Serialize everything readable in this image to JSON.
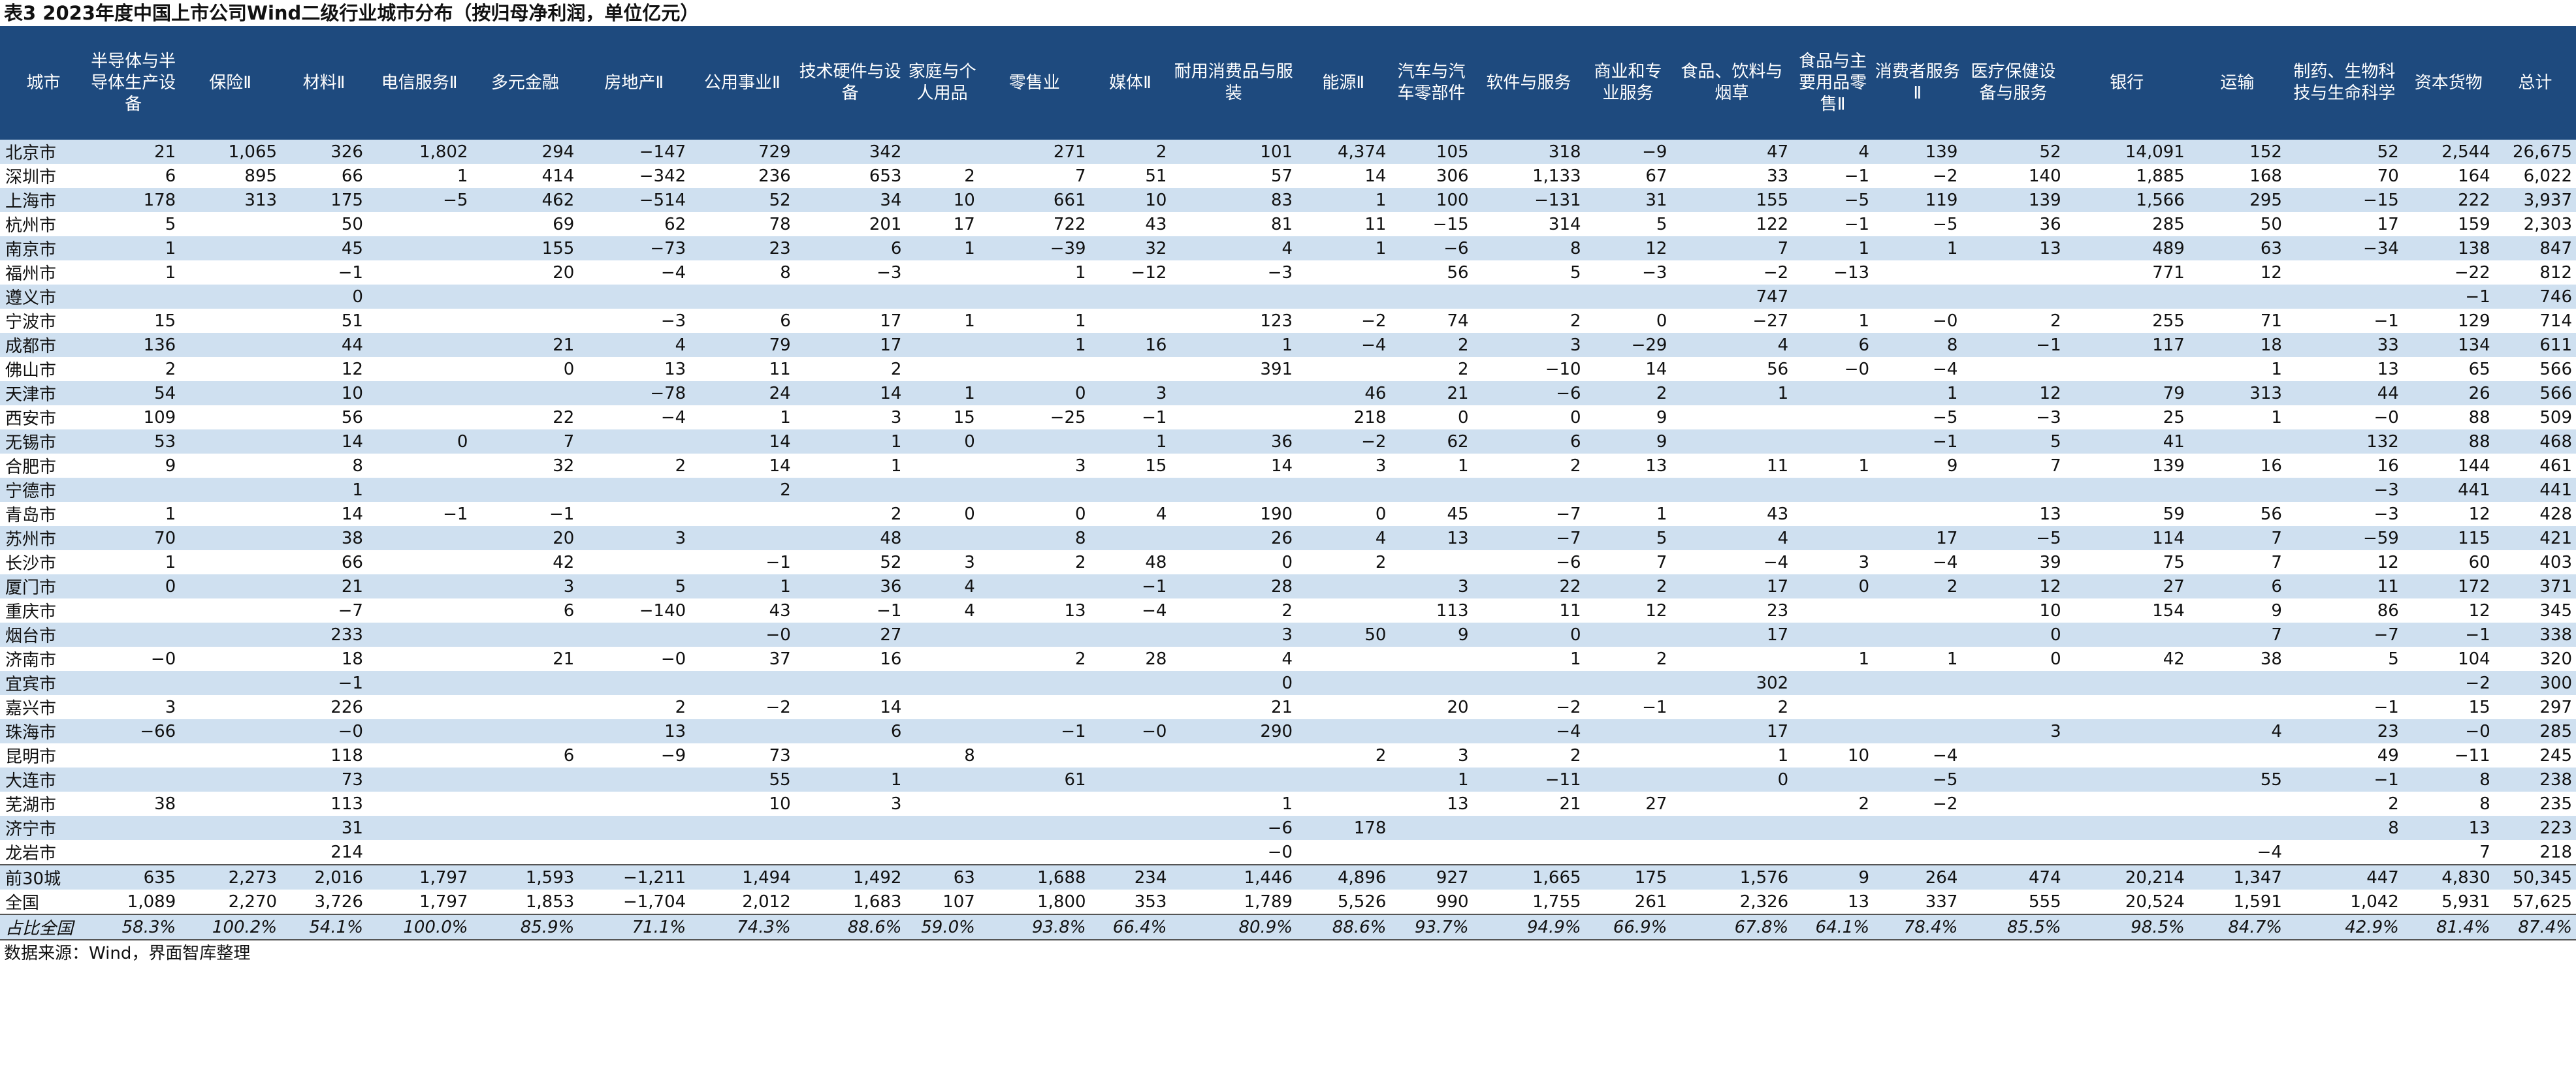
{
  "title": "表3 2023年度中国上市公司Wind二级行业城市分布（按归母净利润，单位亿元）",
  "source": "数据来源：Wind，界面智库整理",
  "columns": [
    "城市",
    "半导体与半导体生产设备",
    "保险Ⅱ",
    "材料Ⅱ",
    "电信服务Ⅱ",
    "多元金融",
    "房地产Ⅱ",
    "公用事业Ⅱ",
    "技术硬件与设备",
    "家庭与个人用品",
    "零售业",
    "媒体Ⅱ",
    "耐用消费品与服装",
    "能源Ⅱ",
    "汽车与汽车零部件",
    "软件与服务",
    "商业和专业服务",
    "食品、饮料与烟草",
    "食品与主要用品零售Ⅱ",
    "消费者服务Ⅱ",
    "医疗保健设备与服务",
    "银行",
    "运输",
    "制药、生物科技与生命科学",
    "资本货物",
    "总计"
  ],
  "rows": [
    [
      "北京市",
      "21",
      "1,065",
      "326",
      "1,802",
      "294",
      "−147",
      "729",
      "342",
      "",
      "271",
      "2",
      "101",
      "4,374",
      "105",
      "318",
      "−9",
      "47",
      "4",
      "139",
      "52",
      "14,091",
      "152",
      "52",
      "2,544",
      "26,675"
    ],
    [
      "深圳市",
      "6",
      "895",
      "66",
      "1",
      "414",
      "−342",
      "236",
      "653",
      "2",
      "7",
      "51",
      "57",
      "14",
      "306",
      "1,133",
      "67",
      "33",
      "−1",
      "−2",
      "140",
      "1,885",
      "168",
      "70",
      "164",
      "6,022"
    ],
    [
      "上海市",
      "178",
      "313",
      "175",
      "−5",
      "462",
      "−514",
      "52",
      "34",
      "10",
      "661",
      "10",
      "83",
      "1",
      "100",
      "−131",
      "31",
      "155",
      "−5",
      "119",
      "139",
      "1,566",
      "295",
      "−15",
      "222",
      "3,937"
    ],
    [
      "杭州市",
      "5",
      "",
      "50",
      "",
      "69",
      "62",
      "78",
      "201",
      "17",
      "722",
      "43",
      "81",
      "11",
      "−15",
      "314",
      "5",
      "122",
      "−1",
      "−5",
      "36",
      "285",
      "50",
      "17",
      "159",
      "2,303"
    ],
    [
      "南京市",
      "1",
      "",
      "45",
      "",
      "155",
      "−73",
      "23",
      "6",
      "1",
      "−39",
      "32",
      "4",
      "1",
      "−6",
      "8",
      "12",
      "7",
      "1",
      "1",
      "13",
      "489",
      "63",
      "−34",
      "138",
      "847"
    ],
    [
      "福州市",
      "1",
      "",
      "−1",
      "",
      "20",
      "−4",
      "8",
      "−3",
      "",
      "1",
      "−12",
      "−3",
      "",
      "56",
      "5",
      "−3",
      "−2",
      "−13",
      "",
      "",
      "771",
      "12",
      "",
      "−22",
      "812"
    ],
    [
      "遵义市",
      "",
      "",
      "0",
      "",
      "",
      "",
      "",
      "",
      "",
      "",
      "",
      "",
      "",
      "",
      "",
      "",
      "747",
      "",
      "",
      "",
      "",
      "",
      "",
      "−1",
      "746"
    ],
    [
      "宁波市",
      "15",
      "",
      "51",
      "",
      "",
      "−3",
      "6",
      "17",
      "1",
      "1",
      "",
      "123",
      "−2",
      "74",
      "2",
      "0",
      "−27",
      "1",
      "−0",
      "2",
      "255",
      "71",
      "−1",
      "129",
      "714"
    ],
    [
      "成都市",
      "136",
      "",
      "44",
      "",
      "21",
      "4",
      "79",
      "17",
      "",
      "1",
      "16",
      "1",
      "−4",
      "2",
      "3",
      "−29",
      "4",
      "6",
      "8",
      "−1",
      "117",
      "18",
      "33",
      "134",
      "611"
    ],
    [
      "佛山市",
      "2",
      "",
      "12",
      "",
      "0",
      "13",
      "11",
      "2",
      "",
      "",
      "",
      "391",
      "",
      "2",
      "−10",
      "14",
      "56",
      "−0",
      "−4",
      "",
      "",
      "1",
      "13",
      "65",
      "566"
    ],
    [
      "天津市",
      "54",
      "",
      "10",
      "",
      "",
      "−78",
      "24",
      "14",
      "1",
      "0",
      "3",
      "",
      "46",
      "21",
      "−6",
      "2",
      "1",
      "",
      "1",
      "12",
      "79",
      "313",
      "44",
      "26",
      "566"
    ],
    [
      "西安市",
      "109",
      "",
      "56",
      "",
      "22",
      "−4",
      "1",
      "3",
      "15",
      "−25",
      "−1",
      "",
      "218",
      "0",
      "0",
      "9",
      "",
      "",
      "−5",
      "−3",
      "25",
      "1",
      "−0",
      "88",
      "509"
    ],
    [
      "无锡市",
      "53",
      "",
      "14",
      "0",
      "7",
      "",
      "14",
      "1",
      "0",
      "",
      "1",
      "36",
      "−2",
      "62",
      "6",
      "9",
      "",
      "",
      "−1",
      "5",
      "41",
      "",
      "132",
      "88",
      "468"
    ],
    [
      "合肥市",
      "9",
      "",
      "8",
      "",
      "32",
      "2",
      "14",
      "1",
      "",
      "3",
      "15",
      "14",
      "3",
      "1",
      "2",
      "13",
      "11",
      "1",
      "9",
      "7",
      "139",
      "16",
      "16",
      "144",
      "461"
    ],
    [
      "宁德市",
      "",
      "",
      "1",
      "",
      "",
      "",
      "2",
      "",
      "",
      "",
      "",
      "",
      "",
      "",
      "",
      "",
      "",
      "",
      "",
      "",
      "",
      "",
      "−3",
      "441",
      "441"
    ],
    [
      "青岛市",
      "1",
      "",
      "14",
      "−1",
      "−1",
      "",
      "",
      "2",
      "0",
      "0",
      "4",
      "190",
      "0",
      "45",
      "−7",
      "1",
      "43",
      "",
      "",
      "13",
      "59",
      "56",
      "−3",
      "12",
      "428"
    ],
    [
      "苏州市",
      "70",
      "",
      "38",
      "",
      "20",
      "3",
      "",
      "48",
      "",
      "8",
      "",
      "26",
      "4",
      "13",
      "−7",
      "5",
      "4",
      "",
      "17",
      "−5",
      "114",
      "7",
      "−59",
      "115",
      "421"
    ],
    [
      "长沙市",
      "1",
      "",
      "66",
      "",
      "42",
      "",
      "−1",
      "52",
      "3",
      "2",
      "48",
      "0",
      "2",
      "",
      "−6",
      "7",
      "−4",
      "3",
      "−4",
      "39",
      "75",
      "7",
      "12",
      "60",
      "403"
    ],
    [
      "厦门市",
      "0",
      "",
      "21",
      "",
      "3",
      "5",
      "1",
      "36",
      "4",
      "",
      "−1",
      "28",
      "",
      "3",
      "22",
      "2",
      "17",
      "0",
      "2",
      "12",
      "27",
      "6",
      "11",
      "172",
      "371"
    ],
    [
      "重庆市",
      "",
      "",
      "−7",
      "",
      "6",
      "−140",
      "43",
      "−1",
      "4",
      "13",
      "−4",
      "2",
      "",
      "113",
      "11",
      "12",
      "23",
      "",
      "",
      "10",
      "154",
      "9",
      "86",
      "12",
      "345"
    ],
    [
      "烟台市",
      "",
      "",
      "233",
      "",
      "",
      "",
      "−0",
      "27",
      "",
      "",
      "",
      "3",
      "50",
      "9",
      "0",
      "",
      "17",
      "",
      "",
      "0",
      "",
      "7",
      "−7",
      "−1",
      "338"
    ],
    [
      "济南市",
      "−0",
      "",
      "18",
      "",
      "21",
      "−0",
      "37",
      "16",
      "",
      "2",
      "28",
      "4",
      "",
      "",
      "1",
      "2",
      "",
      "1",
      "1",
      "0",
      "42",
      "38",
      "5",
      "104",
      "320"
    ],
    [
      "宜宾市",
      "",
      "",
      "−1",
      "",
      "",
      "",
      "",
      "",
      "",
      "",
      "",
      "0",
      "",
      "",
      "",
      "",
      "302",
      "",
      "",
      "",
      "",
      "",
      "",
      "−2",
      "300"
    ],
    [
      "嘉兴市",
      "3",
      "",
      "226",
      "",
      "",
      "2",
      "−2",
      "14",
      "",
      "",
      "",
      "21",
      "",
      "20",
      "−2",
      "−1",
      "2",
      "",
      "",
      "",
      "",
      "",
      "−1",
      "15",
      "297"
    ],
    [
      "珠海市",
      "−66",
      "",
      "−0",
      "",
      "",
      "13",
      "",
      "6",
      "",
      "−1",
      "−0",
      "290",
      "",
      "",
      "−4",
      "",
      "17",
      "",
      "",
      "3",
      "",
      "4",
      "23",
      "−0",
      "285"
    ],
    [
      "昆明市",
      "",
      "",
      "118",
      "",
      "6",
      "−9",
      "73",
      "",
      "8",
      "",
      "",
      "",
      "2",
      "3",
      "2",
      "",
      "1",
      "10",
      "−4",
      "",
      "",
      "",
      "49",
      "−11",
      "245"
    ],
    [
      "大连市",
      "",
      "",
      "73",
      "",
      "",
      "",
      "55",
      "1",
      "",
      "61",
      "",
      "",
      "",
      "1",
      "−11",
      "",
      "0",
      "",
      "−5",
      "",
      "",
      "55",
      "−1",
      "8",
      "238"
    ],
    [
      "芜湖市",
      "38",
      "",
      "113",
      "",
      "",
      "",
      "10",
      "3",
      "",
      "",
      "",
      "1",
      "",
      "13",
      "21",
      "27",
      "",
      "2",
      "−2",
      "",
      "",
      "",
      "2",
      "8",
      "235"
    ],
    [
      "济宁市",
      "",
      "",
      "31",
      "",
      "",
      "",
      "",
      "",
      "",
      "",
      "",
      "−6",
      "178",
      "",
      "",
      "",
      "",
      "",
      "",
      "",
      "",
      "",
      "8",
      "13",
      "223"
    ],
    [
      "龙岩市",
      "",
      "",
      "214",
      "",
      "",
      "",
      "",
      "",
      "",
      "",
      "",
      "−0",
      "",
      "",
      "",
      "",
      "",
      "",
      "",
      "",
      "",
      "−4",
      "",
      "7",
      "218"
    ],
    [
      "前30城",
      "635",
      "2,273",
      "2,016",
      "1,797",
      "1,593",
      "−1,211",
      "1,494",
      "1,492",
      "63",
      "1,688",
      "234",
      "1,446",
      "4,896",
      "927",
      "1,665",
      "175",
      "1,576",
      "9",
      "264",
      "474",
      "20,214",
      "1,347",
      "447",
      "4,830",
      "50,345"
    ],
    [
      "全国",
      "1,089",
      "2,270",
      "3,726",
      "1,797",
      "1,853",
      "−1,704",
      "2,012",
      "1,683",
      "107",
      "1,800",
      "353",
      "1,789",
      "5,526",
      "990",
      "1,755",
      "261",
      "2,326",
      "13",
      "337",
      "555",
      "20,524",
      "1,591",
      "1,042",
      "5,931",
      "57,625"
    ],
    [
      "占比全国",
      "58.3%",
      "100.2%",
      "54.1%",
      "100.0%",
      "85.9%",
      "71.1%",
      "74.3%",
      "88.6%",
      "59.0%",
      "93.8%",
      "66.4%",
      "80.9%",
      "88.6%",
      "93.7%",
      "94.9%",
      "66.9%",
      "67.8%",
      "64.1%",
      "78.4%",
      "85.5%",
      "98.5%",
      "84.7%",
      "42.9%",
      "81.4%",
      "87.4%"
    ]
  ]
}
